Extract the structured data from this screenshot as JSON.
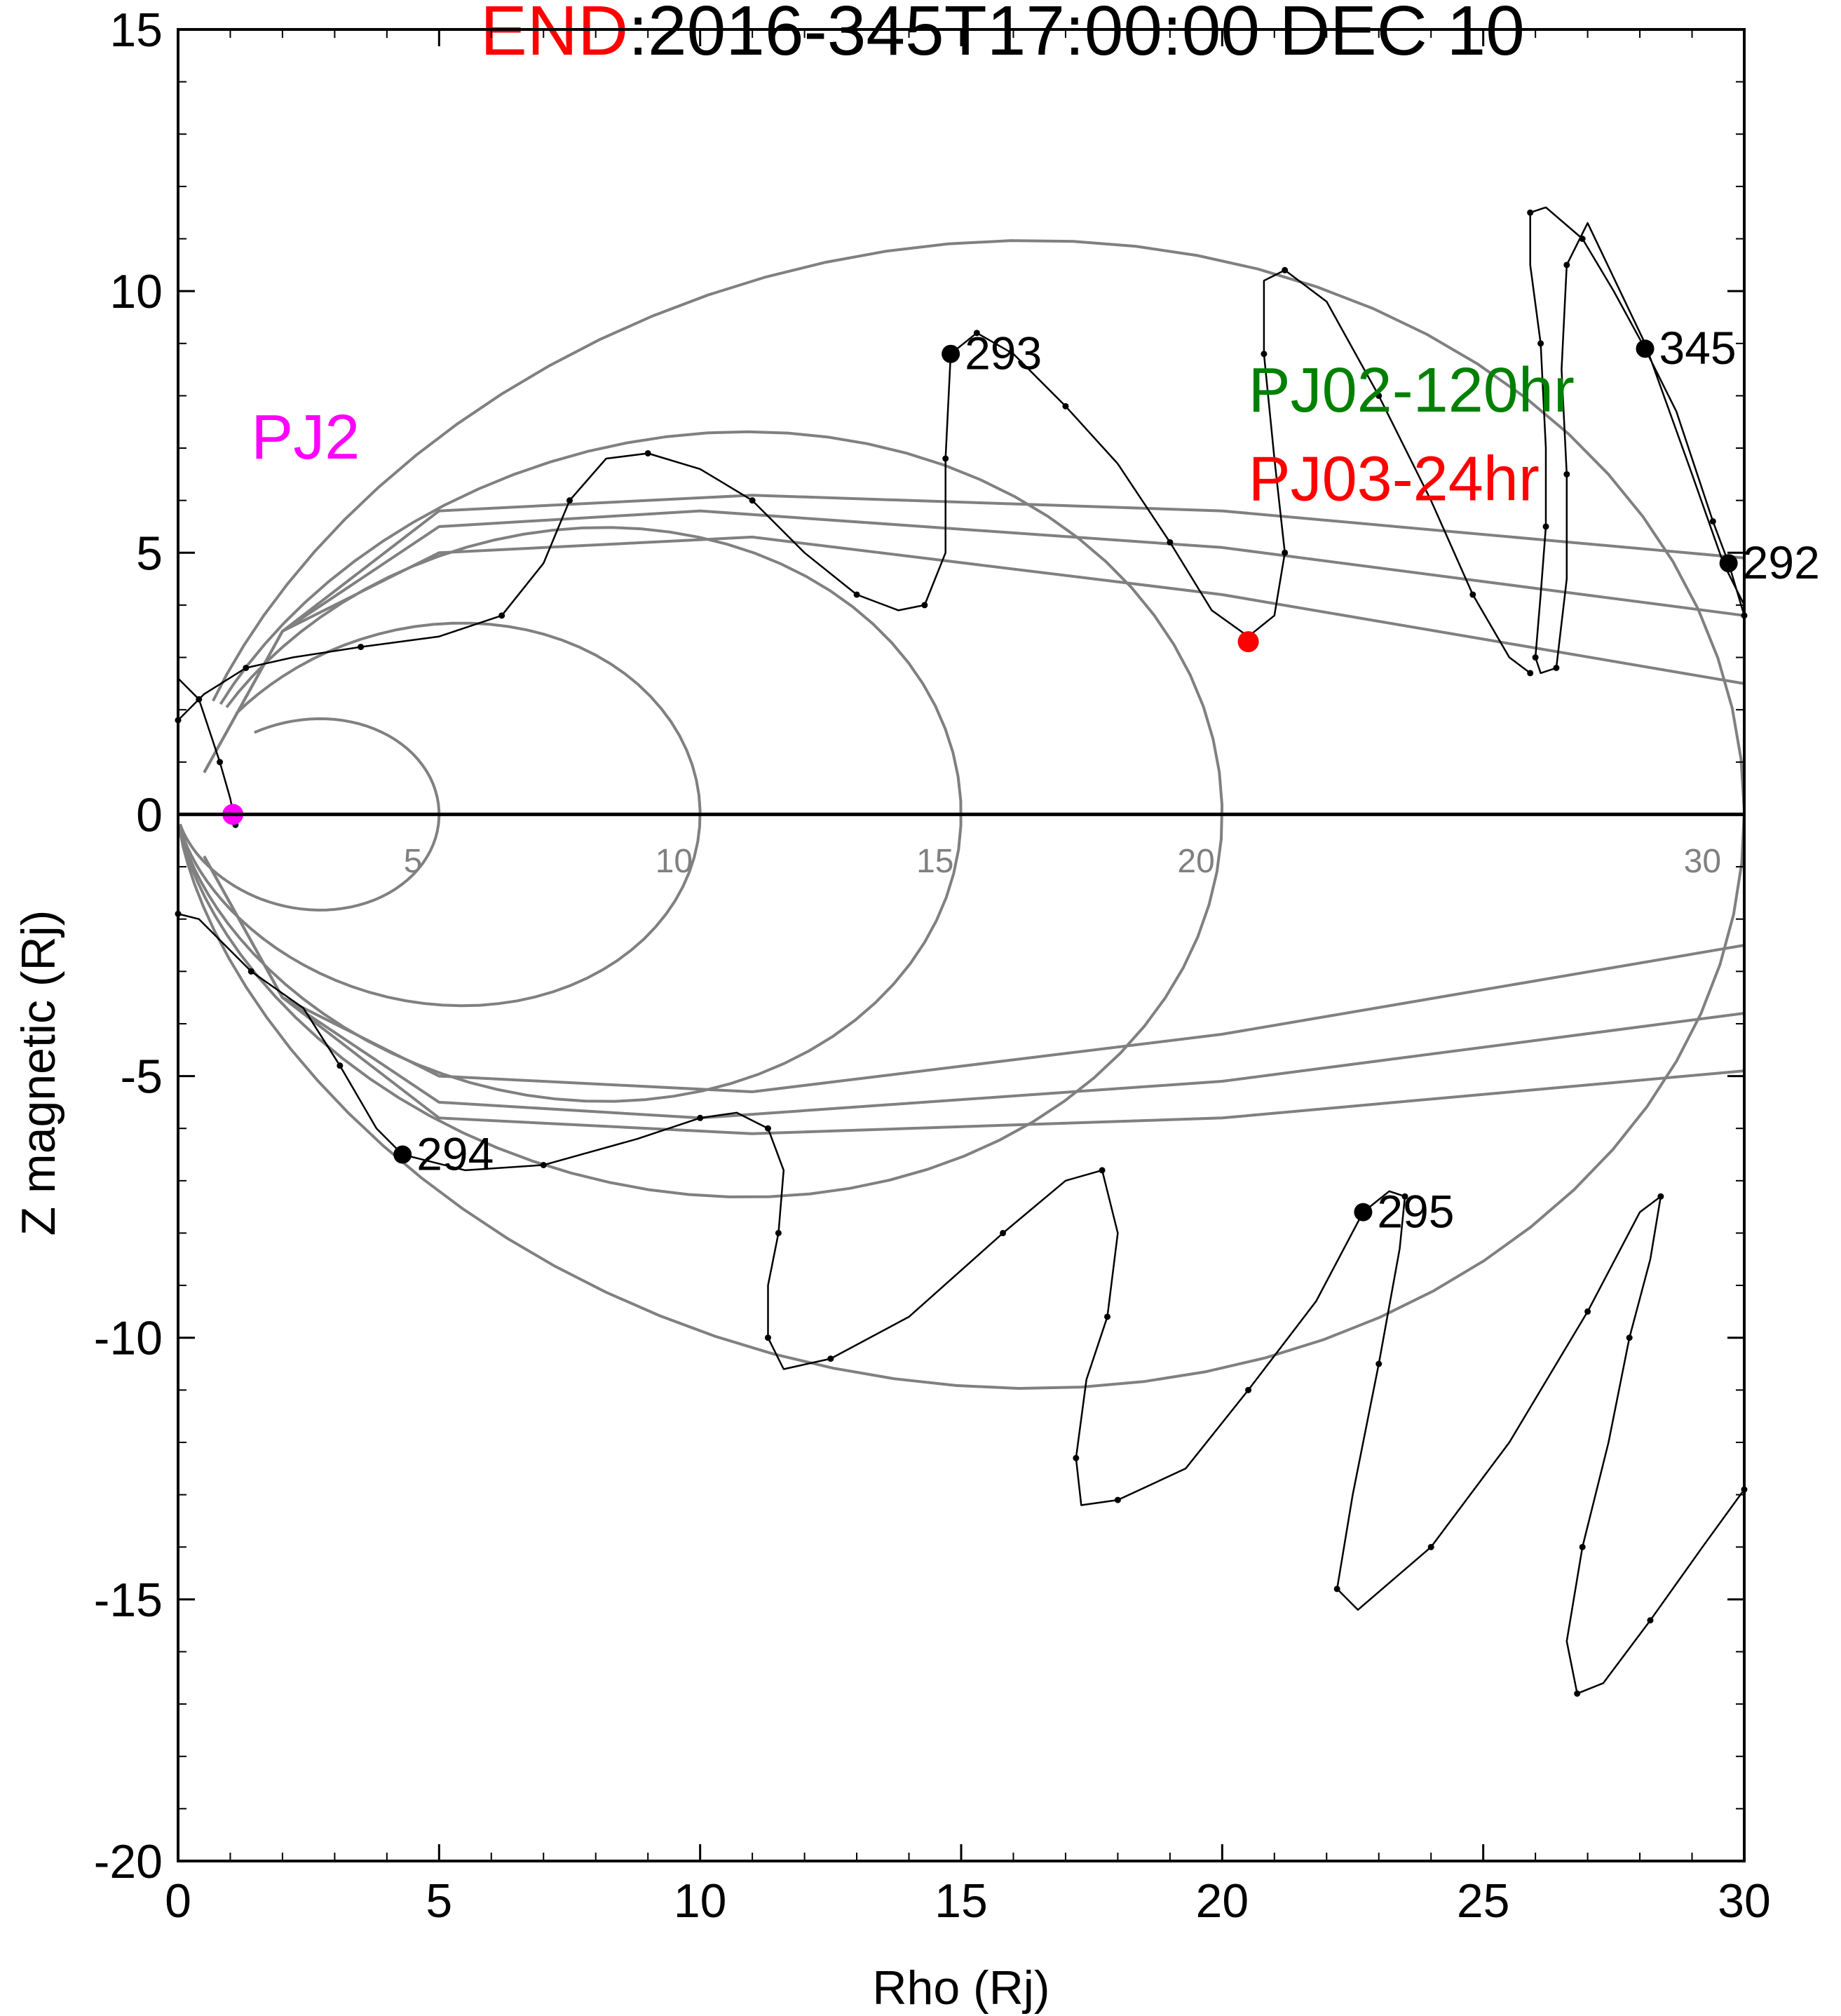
{
  "chart_data": {
    "type": "line",
    "title": {
      "prefix": "END",
      "prefix_color": "#ff0000",
      "text": ":2016-345T17:00:00 DEC 10"
    },
    "xlabel": "Rho (Rj)",
    "ylabel": "Z magnetic (Rj)",
    "xlim": [
      0,
      30
    ],
    "ylim": [
      -20,
      15
    ],
    "xticks": [
      "0",
      "5",
      "10",
      "15",
      "20",
      "25",
      "30"
    ],
    "yticks": [
      "15",
      "10",
      "5",
      "0",
      "-5",
      "-10",
      "-15",
      "-20"
    ],
    "grid": false,
    "legend": "none",
    "colors": {
      "trajectory": "#000000",
      "field_lines": "#808080",
      "pj2_marker": "#ff00ff",
      "end_marker": "#ff0000",
      "annotation_green": "#008000",
      "annotation_red": "#ff0000"
    },
    "field_line_labels": [
      {
        "text": "5",
        "x": 4.5,
        "y": -0.6
      },
      {
        "text": "10",
        "x": 9.5,
        "y": -0.6
      },
      {
        "text": "15",
        "x": 14.5,
        "y": -0.6
      },
      {
        "text": "20",
        "x": 19.5,
        "y": -0.6
      },
      {
        "text": "30",
        "x": 29.2,
        "y": -0.6
      }
    ],
    "annotations": [
      {
        "text": "PJ2",
        "color": "#ff00ff",
        "x": 1.4,
        "y": 6.8
      },
      {
        "text": "PJ02-120hr",
        "color": "#008000",
        "x": 20.5,
        "y": 7.7
      },
      {
        "text": "PJ03-24hr",
        "color": "#ff0000",
        "x": 20.5,
        "y": 6.0
      }
    ],
    "day_markers": [
      {
        "label": "292",
        "x": 29.7,
        "y": 4.8
      },
      {
        "label": "293",
        "x": 14.8,
        "y": 8.8
      },
      {
        "label": "294",
        "x": 4.3,
        "y": -6.5
      },
      {
        "label": "295",
        "x": 22.7,
        "y": -7.6
      },
      {
        "label": "345",
        "x": 28.1,
        "y": 8.9
      }
    ],
    "special_points": [
      {
        "name": "PJ2",
        "x": 1.05,
        "y": 0.0,
        "color": "#ff00ff"
      },
      {
        "name": "END",
        "x": 20.5,
        "y": 3.3,
        "color": "#ff0000"
      }
    ],
    "trajectory": [
      [
        30.0,
        3.8
      ],
      [
        29.7,
        4.8
      ],
      [
        29.4,
        5.6
      ],
      [
        28.7,
        7.7
      ],
      [
        28.1,
        8.9
      ],
      [
        27.5,
        10.0
      ],
      [
        26.9,
        11.0
      ],
      [
        26.2,
        11.6
      ],
      [
        25.9,
        11.5
      ],
      [
        25.9,
        10.5
      ],
      [
        26.1,
        9.0
      ],
      [
        26.2,
        7.0
      ],
      [
        26.2,
        5.5
      ],
      [
        26.1,
        4.2
      ],
      [
        26.0,
        3.0
      ],
      [
        26.1,
        2.7
      ],
      [
        26.4,
        2.8
      ],
      [
        26.6,
        4.5
      ],
      [
        26.6,
        6.5
      ],
      [
        26.5,
        8.5
      ],
      [
        26.6,
        10.5
      ],
      [
        27.0,
        11.3
      ],
      [
        28.1,
        9.0
      ],
      [
        29.0,
        6.5
      ],
      [
        29.6,
        4.8
      ],
      [
        30.0,
        4.0
      ],
      [
        30.0,
        -12.9
      ],
      [
        29.2,
        -14.0
      ],
      [
        28.2,
        -15.4
      ],
      [
        27.3,
        -16.6
      ],
      [
        26.8,
        -16.8
      ],
      [
        26.6,
        -15.8
      ],
      [
        26.9,
        -14.0
      ],
      [
        27.4,
        -12.0
      ],
      [
        27.8,
        -10.0
      ],
      [
        28.2,
        -8.5
      ],
      [
        28.4,
        -7.3
      ],
      [
        28.0,
        -7.6
      ],
      [
        27.0,
        -9.5
      ],
      [
        25.5,
        -12.0
      ],
      [
        24.0,
        -14.0
      ],
      [
        22.6,
        -15.2
      ],
      [
        22.2,
        -14.8
      ],
      [
        22.5,
        -13.0
      ],
      [
        23.0,
        -10.5
      ],
      [
        23.4,
        -8.3
      ],
      [
        23.5,
        -7.3
      ],
      [
        23.2,
        -7.2
      ],
      [
        22.7,
        -7.6
      ],
      [
        21.8,
        -9.3
      ],
      [
        20.5,
        -11.0
      ],
      [
        19.3,
        -12.5
      ],
      [
        18.0,
        -13.1
      ],
      [
        17.3,
        -13.2
      ],
      [
        17.2,
        -12.3
      ],
      [
        17.4,
        -10.8
      ],
      [
        17.8,
        -9.6
      ],
      [
        18.0,
        -8.0
      ],
      [
        17.7,
        -6.8
      ],
      [
        17.0,
        -7.0
      ],
      [
        15.8,
        -8.0
      ],
      [
        14.0,
        -9.6
      ],
      [
        12.5,
        -10.4
      ],
      [
        11.6,
        -10.6
      ],
      [
        11.3,
        -10.0
      ],
      [
        11.3,
        -9.0
      ],
      [
        11.5,
        -8.0
      ],
      [
        11.6,
        -6.8
      ],
      [
        11.3,
        -6.0
      ],
      [
        10.7,
        -5.7
      ],
      [
        10.0,
        -5.8
      ],
      [
        8.8,
        -6.2
      ],
      [
        7.0,
        -6.7
      ],
      [
        5.5,
        -6.8
      ],
      [
        4.3,
        -6.5
      ],
      [
        3.8,
        -6.0
      ],
      [
        3.1,
        -4.8
      ],
      [
        2.4,
        -3.7
      ],
      [
        1.4,
        -3.0
      ],
      [
        0.4,
        -2.0
      ],
      [
        0.0,
        -1.9
      ]
    ],
    "trajectory_b": [
      [
        0.0,
        1.8
      ],
      [
        0.5,
        2.3
      ],
      [
        1.3,
        2.8
      ],
      [
        2.2,
        3.0
      ],
      [
        3.5,
        3.2
      ],
      [
        5.0,
        3.4
      ],
      [
        6.2,
        3.8
      ],
      [
        7.0,
        4.8
      ],
      [
        7.5,
        6.0
      ],
      [
        8.2,
        6.8
      ],
      [
        9.0,
        6.9
      ],
      [
        10.0,
        6.6
      ],
      [
        11.0,
        6.0
      ],
      [
        12.0,
        5.0
      ],
      [
        13.0,
        4.2
      ],
      [
        13.8,
        3.9
      ],
      [
        14.3,
        4.0
      ],
      [
        14.7,
        5.0
      ],
      [
        14.7,
        6.8
      ],
      [
        14.8,
        8.8
      ],
      [
        15.3,
        9.2
      ],
      [
        16.0,
        8.8
      ],
      [
        17.0,
        7.8
      ],
      [
        18.0,
        6.7
      ],
      [
        19.0,
        5.2
      ],
      [
        19.8,
        3.9
      ],
      [
        20.5,
        3.4
      ],
      [
        21.0,
        3.8
      ],
      [
        21.2,
        5.0
      ],
      [
        21.0,
        6.8
      ],
      [
        20.8,
        8.8
      ],
      [
        20.8,
        10.2
      ],
      [
        21.2,
        10.4
      ],
      [
        22.0,
        9.8
      ],
      [
        23.0,
        8.0
      ],
      [
        24.0,
        6.0
      ],
      [
        24.8,
        4.2
      ],
      [
        25.5,
        3.0
      ],
      [
        25.9,
        2.7
      ]
    ],
    "trajectory_pj2": [
      [
        1.1,
        -0.2
      ],
      [
        1.0,
        0.3
      ],
      [
        0.8,
        1.0
      ],
      [
        0.6,
        1.6
      ],
      [
        0.4,
        2.2
      ],
      [
        0.0,
        2.6
      ]
    ],
    "field_lines": [
      {
        "equator_rho": 5,
        "latitude_scale": 1.8
      },
      {
        "equator_rho": 10,
        "latitude_scale": 3.4
      },
      {
        "equator_rho": 15,
        "latitude_scale": 4.3
      },
      {
        "equator_rho": 20,
        "latitude_scale": 5.0
      },
      {
        "equator_rho": 30,
        "latitude_scale": 5.4
      }
    ],
    "open_field_lines": [
      {
        "end_z": 2.5,
        "peak_z": 5.3,
        "peak_rho": 11
      },
      {
        "end_z": 3.8,
        "peak_z": 5.8,
        "peak_rho": 10
      },
      {
        "end_z": 4.9,
        "peak_z": 6.1,
        "peak_rho": 11
      }
    ]
  }
}
